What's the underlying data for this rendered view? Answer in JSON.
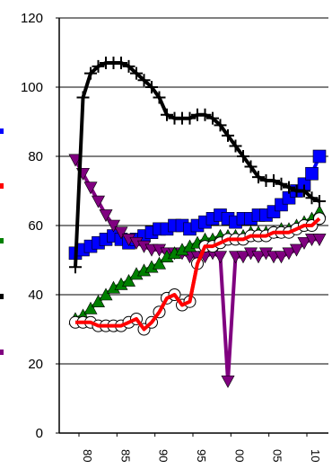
{
  "chart_data": {
    "type": "line",
    "title": "",
    "xlabel": "",
    "ylabel": "",
    "ylim": [
      0,
      120
    ],
    "yticks": [
      0,
      20,
      40,
      60,
      80,
      100,
      120
    ],
    "xtick_labels": [
      "80",
      "85",
      "90",
      "95",
      "00",
      "05",
      "10"
    ],
    "grid": "horizontal",
    "legend": "none",
    "series": [
      {
        "color": "#0000ff",
        "marker": "square",
        "values": [
          52,
          53,
          54,
          55,
          56,
          57,
          56,
          55,
          56,
          57,
          58,
          59,
          59,
          60,
          60,
          59,
          60,
          61,
          62,
          63,
          62,
          61,
          62,
          62,
          63,
          63,
          64,
          66,
          68,
          70,
          72,
          75,
          80
        ]
      },
      {
        "color": "#ff0000",
        "marker": "circle-open",
        "values": [
          32,
          32,
          32,
          31,
          31,
          31,
          31,
          32,
          33,
          30,
          32,
          35,
          39,
          40,
          37,
          38,
          49,
          54,
          54,
          55,
          56,
          56,
          56,
          57,
          57,
          57,
          58,
          58,
          58,
          59,
          60,
          60,
          62
        ]
      },
      {
        "color": "#008000",
        "marker": "triangle-up",
        "values": [
          33,
          34,
          36,
          38,
          40,
          42,
          43,
          44,
          46,
          47,
          48,
          49,
          51,
          52,
          53,
          54,
          55,
          56,
          56,
          57,
          57,
          57,
          57,
          58,
          58,
          58,
          58,
          59,
          59,
          60,
          61,
          62,
          64
        ]
      },
      {
        "color": "#000000",
        "marker": "plus",
        "values": [
          48,
          97,
          104,
          106,
          107,
          107,
          107,
          106,
          104,
          102,
          100,
          97,
          92,
          91,
          91,
          91,
          92,
          92,
          91,
          89,
          86,
          83,
          80,
          77,
          74,
          73,
          73,
          72,
          71,
          70,
          70,
          68,
          67
        ]
      },
      {
        "color": "#800080",
        "marker": "triangle-down",
        "values": [
          79,
          75,
          71,
          67,
          63,
          60,
          58,
          56,
          55,
          54,
          53,
          53,
          52,
          52,
          52,
          51,
          51,
          51,
          52,
          51,
          15,
          51,
          51,
          52,
          51,
          52,
          51,
          51,
          52,
          53,
          55,
          56,
          56
        ]
      }
    ]
  }
}
